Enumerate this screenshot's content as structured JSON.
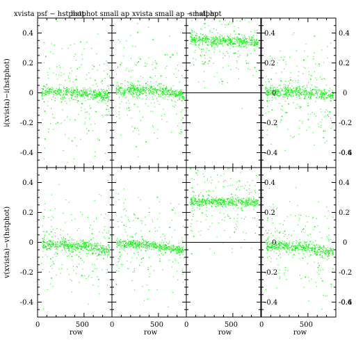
{
  "chart_data": {
    "type": "scatter",
    "point_color": "#00ff00",
    "titles": [
      "xvista psf − hstphot",
      "hstphot small ap",
      "xvista small ap − hstphot",
      "small ap"
    ],
    "row_ylabels": [
      "i(xvista)−i(hstphot)",
      "v(xvista)−v(hstphot)"
    ],
    "xlabel": "row",
    "xlim": [
      0,
      800
    ],
    "ylim": [
      -0.5,
      0.5
    ],
    "xticks": [
      0,
      500
    ],
    "yticks_left": [
      "-0.4",
      "-0.2",
      "0",
      "0.2",
      "0.4"
    ],
    "yticks_inner": [
      "-0.4",
      "-0.2",
      "0",
      "0.2",
      "0.4"
    ],
    "yticks_right": [
      "-0.6",
      "-0.4",
      "-0.2",
      "0",
      "0.2",
      "0.4"
    ],
    "series": [
      {
        "row": 0,
        "col": 0,
        "x": [
          50,
          150,
          250,
          350,
          450,
          550,
          650,
          750
        ],
        "y": [
          0.01,
          0.01,
          0.01,
          0.01,
          0.0,
          -0.01,
          -0.01,
          -0.02
        ],
        "spread": 0.04,
        "zero_line": false
      },
      {
        "row": 0,
        "col": 1,
        "x": [
          50,
          150,
          250,
          350,
          450,
          550,
          650,
          750
        ],
        "y": [
          0.02,
          0.02,
          0.02,
          0.02,
          0.02,
          0.01,
          0.0,
          -0.01
        ],
        "spread": 0.04,
        "zero_line": false
      },
      {
        "row": 0,
        "col": 2,
        "x": [
          50,
          150,
          250,
          350,
          450,
          550,
          650,
          750
        ],
        "y": [
          0.36,
          0.36,
          0.35,
          0.35,
          0.35,
          0.35,
          0.35,
          0.34
        ],
        "spread": 0.04,
        "zero_line": true
      },
      {
        "row": 0,
        "col": 3,
        "x": [
          50,
          150,
          250,
          350,
          450,
          550,
          650,
          750
        ],
        "y": [
          0.01,
          0.01,
          0.01,
          0.01,
          0.0,
          0.0,
          -0.01,
          -0.02
        ],
        "spread": 0.04,
        "zero_line": false
      },
      {
        "row": 1,
        "col": 0,
        "x": [
          50,
          150,
          250,
          350,
          450,
          550,
          650,
          750
        ],
        "y": [
          -0.01,
          -0.01,
          -0.01,
          -0.02,
          -0.02,
          -0.03,
          -0.04,
          -0.05
        ],
        "spread": 0.04,
        "zero_line": false
      },
      {
        "row": 1,
        "col": 1,
        "x": [
          50,
          150,
          250,
          350,
          450,
          550,
          650,
          750
        ],
        "y": [
          -0.01,
          -0.01,
          -0.01,
          -0.01,
          -0.02,
          -0.03,
          -0.04,
          -0.05
        ],
        "spread": 0.03,
        "zero_line": false
      },
      {
        "row": 1,
        "col": 2,
        "x": [
          50,
          150,
          250,
          350,
          450,
          550,
          650,
          750
        ],
        "y": [
          0.28,
          0.27,
          0.27,
          0.27,
          0.27,
          0.27,
          0.27,
          0.27
        ],
        "spread": 0.03,
        "zero_line": true
      },
      {
        "row": 1,
        "col": 3,
        "x": [
          50,
          150,
          250,
          350,
          450,
          550,
          650,
          750
        ],
        "y": [
          -0.02,
          -0.02,
          -0.02,
          -0.03,
          -0.03,
          -0.04,
          -0.05,
          -0.06
        ],
        "spread": 0.04,
        "zero_line": false
      }
    ]
  }
}
